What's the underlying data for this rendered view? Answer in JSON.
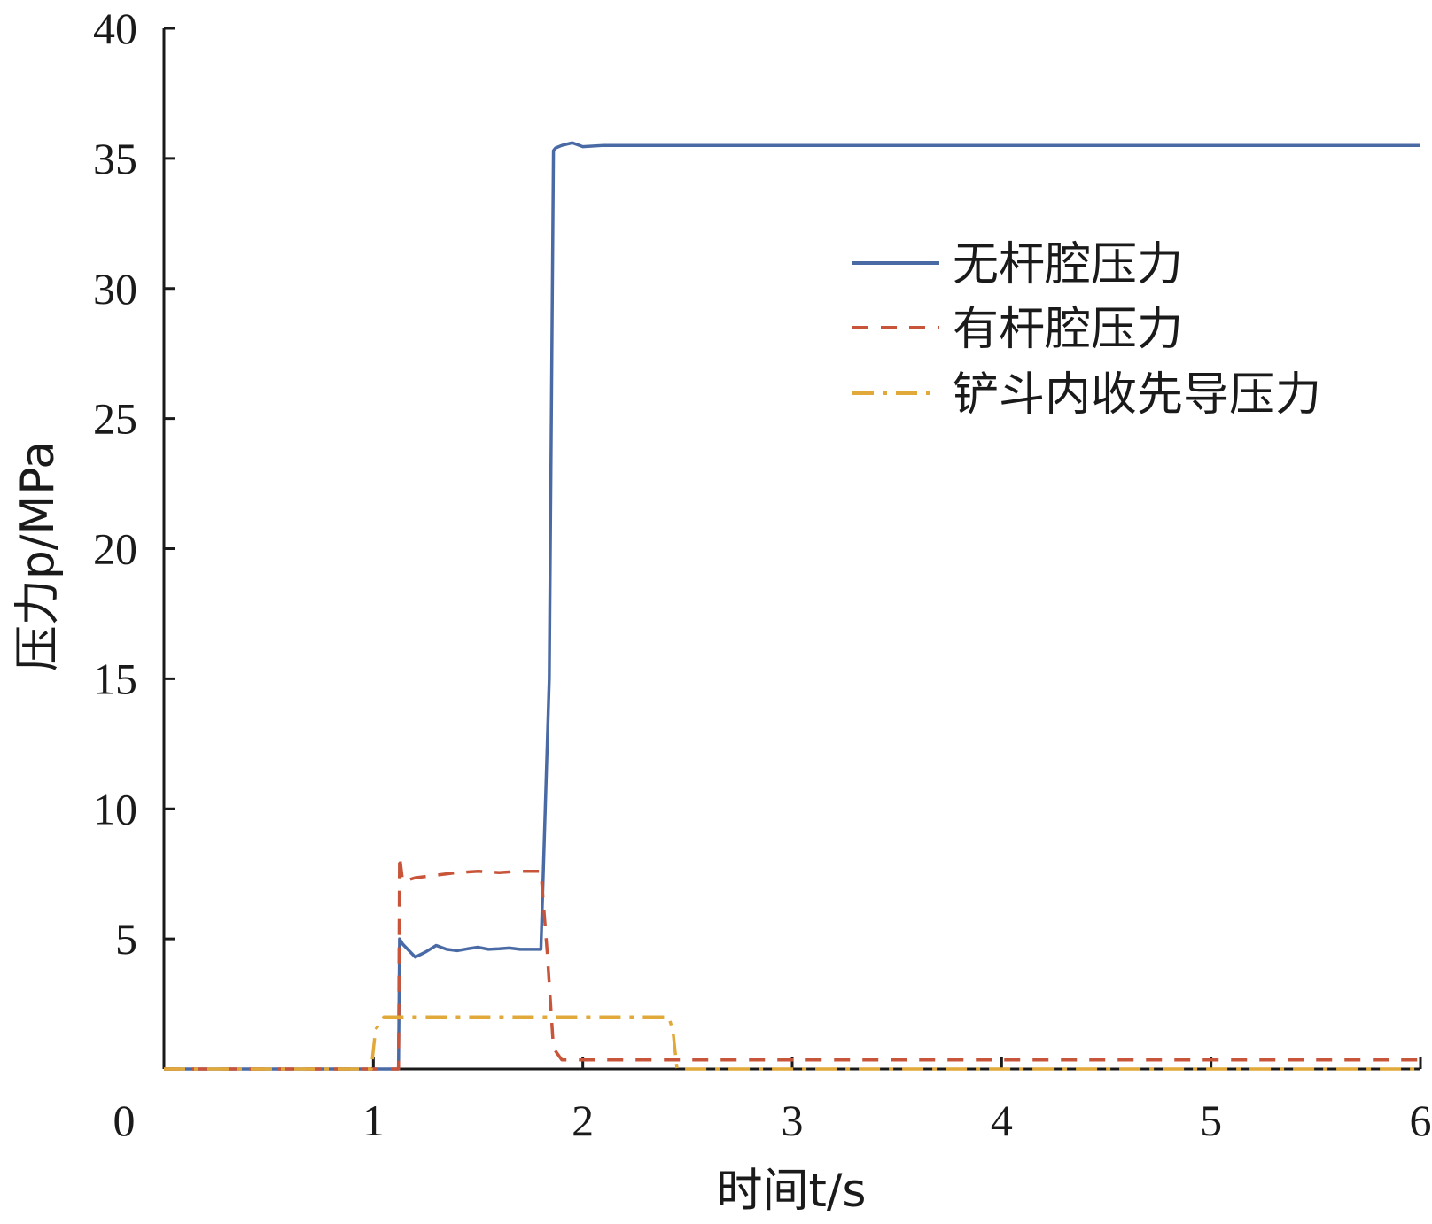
{
  "chart_data": {
    "type": "line",
    "xlabel": "时间t/s",
    "ylabel": "压力p/MPa",
    "xlim": [
      0,
      6
    ],
    "ylim": [
      0,
      40
    ],
    "xticks": [
      0,
      1,
      2,
      3,
      4,
      5,
      6
    ],
    "yticks": [
      5,
      10,
      15,
      20,
      25,
      30,
      35,
      40
    ],
    "grid": false,
    "legend_position": "upper-right",
    "series": [
      {
        "name": "无杆腔压力",
        "color": "#4a6aa5",
        "dash": "solid",
        "x": [
          0,
          1.12,
          1.125,
          1.14,
          1.2,
          1.25,
          1.3,
          1.35,
          1.4,
          1.45,
          1.5,
          1.55,
          1.6,
          1.65,
          1.7,
          1.75,
          1.8,
          1.84,
          1.86,
          1.87,
          1.9,
          1.95,
          2.0,
          2.1,
          6
        ],
        "y": [
          0,
          0,
          5.0,
          4.8,
          4.3,
          4.5,
          4.75,
          4.6,
          4.55,
          4.62,
          4.68,
          4.6,
          4.62,
          4.65,
          4.6,
          4.6,
          4.6,
          15,
          35.3,
          35.4,
          35.5,
          35.6,
          35.45,
          35.5,
          35.5
        ]
      },
      {
        "name": "有杆腔压力",
        "color": "#c8553a",
        "dash": "dashed",
        "x": [
          0,
          1.12,
          1.125,
          1.14,
          1.2,
          1.3,
          1.4,
          1.5,
          1.6,
          1.7,
          1.8,
          1.83,
          1.86,
          1.9,
          2.0,
          6
        ],
        "y": [
          0,
          0,
          8.2,
          7.2,
          7.35,
          7.45,
          7.55,
          7.6,
          7.55,
          7.6,
          7.6,
          4.5,
          0.8,
          0.35,
          0.35,
          0.35
        ]
      },
      {
        "name": "铲斗内收先导压力",
        "color": "#e0a93a",
        "dash": "dashdot",
        "x": [
          0,
          0.99,
          1.01,
          1.05,
          2.41,
          2.43,
          2.45,
          6
        ],
        "y": [
          0,
          0,
          1.5,
          2.0,
          2.0,
          1.5,
          0,
          0
        ]
      }
    ]
  }
}
